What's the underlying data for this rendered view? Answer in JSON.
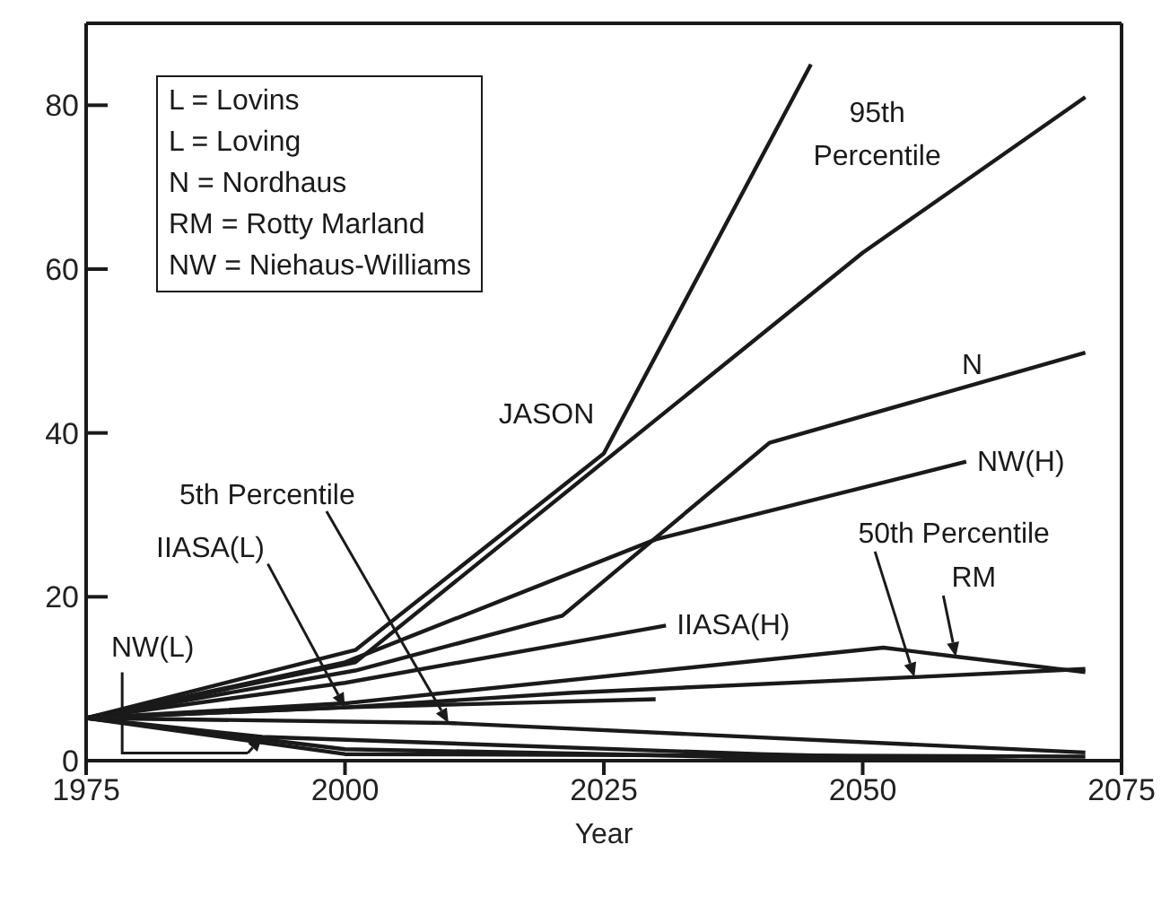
{
  "chart_data": {
    "type": "line",
    "xlabel": "Year",
    "xlim": [
      1975,
      2075
    ],
    "xticks": [
      1975,
      2000,
      2025,
      2050,
      2075
    ],
    "ylim": [
      0,
      90
    ],
    "yticks": [
      0,
      20,
      40,
      60,
      80
    ],
    "marker": "none",
    "line_style": "solid",
    "annotations": [
      "L = Lovins",
      "L = Loving",
      "N = Nordhaus",
      "RM = Rotty Marland",
      "NW = Niehaus-Williams"
    ],
    "series": [
      {
        "name": "JASON",
        "color": "#1a1a1a",
        "x": [
          1975,
          2001,
          2025,
          2045
        ],
        "values": [
          5.2,
          13.5,
          37.5,
          85
        ]
      },
      {
        "name": "95th Percentile",
        "color": "#1a1a1a",
        "x": [
          1975,
          2001,
          2050,
          2071.5
        ],
        "values": [
          5.2,
          12,
          62,
          81
        ]
      },
      {
        "name": "N",
        "color": "#1a1a1a",
        "x": [
          1975,
          2001,
          2021,
          2041,
          2071.5
        ],
        "values": [
          5.2,
          11,
          17.7,
          38.8,
          49.8
        ]
      },
      {
        "name": "NW(H)",
        "color": "#1a1a1a",
        "x": [
          1975,
          2000,
          2030,
          2060
        ],
        "values": [
          5.2,
          12,
          27,
          36.5
        ]
      },
      {
        "name": "IIASA(H)",
        "color": "#1a1a1a",
        "x": [
          1975,
          2000,
          2031
        ],
        "values": [
          5.2,
          9.5,
          16.5
        ]
      },
      {
        "name": "RM",
        "color": "#1a1a1a",
        "x": [
          1975,
          2000,
          2052,
          2059,
          2071.5
        ],
        "values": [
          5.2,
          7,
          13.8,
          12.7,
          10.8
        ]
      },
      {
        "name": "50th Percentile",
        "color": "#1a1a1a",
        "x": [
          1975,
          2000,
          2022,
          2055,
          2071.5
        ],
        "values": [
          5.2,
          6.5,
          8.3,
          10.2,
          11.2
        ]
      },
      {
        "name": "5th Percentile",
        "color": "#1a1a1a",
        "x": [
          1975,
          2010,
          2022,
          2071.5
        ],
        "values": [
          5.2,
          4.6,
          3.9,
          1.0
        ]
      },
      {
        "name": "IIASA(L)",
        "color": "#1a1a1a",
        "x": [
          1975,
          2000,
          2030
        ],
        "values": [
          5.2,
          6.5,
          7.5
        ]
      },
      {
        "name": "NW(L)",
        "color": "#1a1a1a",
        "x": [
          1975,
          1992,
          2040,
          2065
        ],
        "values": [
          5.2,
          2.9,
          0.8,
          0
        ]
      },
      {
        "color": "#1a1a1a",
        "x": [
          1975,
          2000,
          2025,
          2053
        ],
        "values": [
          5.2,
          1.4,
          0.8,
          0
        ]
      },
      {
        "color": "#1a1a1a",
        "x": [
          1975,
          2000,
          2071.5
        ],
        "values": [
          5.2,
          0.8,
          0.5
        ]
      }
    ]
  }
}
